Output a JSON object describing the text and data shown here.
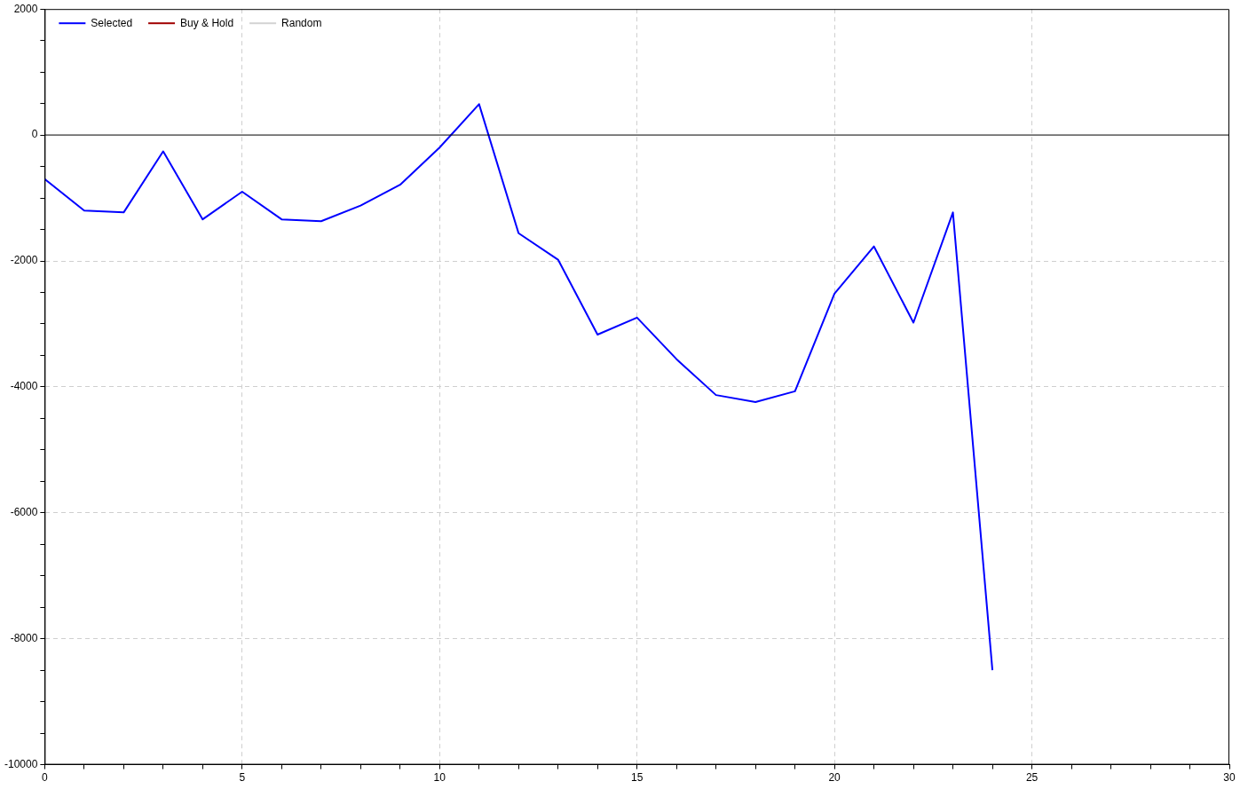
{
  "chart_data": {
    "type": "line",
    "x": [
      0,
      1,
      2,
      3,
      4,
      5,
      6,
      7,
      8,
      9,
      10,
      11,
      12,
      13,
      14,
      15,
      16,
      17,
      18,
      19,
      20,
      21,
      22,
      23,
      24
    ],
    "series": [
      {
        "name": "Selected",
        "color": "#0000ff",
        "values": [
          -700,
          -1200,
          -1230,
          -260,
          -1340,
          -900,
          -1340,
          -1370,
          -1120,
          -790,
          -200,
          490,
          -1560,
          -1980,
          -3170,
          -2900,
          -3560,
          -4130,
          -4240,
          -4070,
          -2520,
          -1770,
          -2980,
          -1230,
          -8500
        ]
      },
      {
        "name": "Buy & Hold",
        "color": "#a00000",
        "values": [
          null,
          null,
          null,
          null,
          null,
          null,
          null,
          null,
          null,
          null,
          null,
          null,
          null,
          null,
          null,
          null,
          null,
          null,
          null,
          null,
          null,
          null,
          null,
          null,
          null
        ]
      },
      {
        "name": "Random",
        "color": "#d3d3d3",
        "values": [
          null,
          null,
          null,
          null,
          null,
          null,
          null,
          null,
          null,
          null,
          null,
          null,
          null,
          null,
          null,
          null,
          null,
          null,
          null,
          null,
          null,
          null,
          null,
          null,
          null
        ]
      }
    ],
    "xlim": [
      0,
      30
    ],
    "xticks": [
      0,
      {
        "value": 1,
        "label": null
      },
      {
        "value": 2,
        "label": null
      },
      {
        "value": 3,
        "label": null
      },
      {
        "value": 4,
        "label": null
      },
      5,
      {
        "value": 6,
        "label": null
      },
      {
        "value": 7,
        "label": null
      },
      {
        "value": 8,
        "label": null
      },
      {
        "value": 9,
        "label": null
      },
      10,
      {
        "value": 11,
        "label": null
      },
      {
        "value": 12,
        "label": null
      },
      {
        "value": 13,
        "label": null
      },
      {
        "value": 14,
        "label": null
      },
      15,
      {
        "value": 16,
        "label": null
      },
      {
        "value": 17,
        "label": null
      },
      {
        "value": 18,
        "label": null
      },
      {
        "value": 19,
        "label": null
      },
      20,
      {
        "value": 21,
        "label": null
      },
      {
        "value": 22,
        "label": null
      },
      {
        "value": 23,
        "label": null
      },
      {
        "value": 24,
        "label": null
      },
      25,
      {
        "value": 26,
        "label": null
      },
      {
        "value": 27,
        "label": null
      },
      {
        "value": 28,
        "label": null
      },
      {
        "value": 29,
        "label": null
      },
      30
    ],
    "ylim": [
      -10000,
      2000
    ],
    "yticks": [
      -10000,
      {
        "value": -9500,
        "label": null
      },
      {
        "value": -9000,
        "label": null
      },
      {
        "value": -8500,
        "label": null
      },
      -8000,
      {
        "value": -7500,
        "label": null
      },
      {
        "value": -7000,
        "label": null
      },
      {
        "value": -6500,
        "label": null
      },
      -6000,
      {
        "value": -5500,
        "label": null
      },
      {
        "value": -5000,
        "label": null
      },
      {
        "value": -4500,
        "label": null
      },
      -4000,
      {
        "value": -3500,
        "label": null
      },
      {
        "value": -3000,
        "label": null
      },
      {
        "value": -2500,
        "label": null
      },
      -2000,
      {
        "value": -1500,
        "label": null
      },
      {
        "value": -1000,
        "label": null
      },
      {
        "value": -500,
        "label": null
      },
      0,
      {
        "value": 500,
        "label": null
      },
      {
        "value": 1000,
        "label": null
      },
      {
        "value": 1500,
        "label": null
      },
      2000
    ],
    "ref_lines": [
      {
        "axis": "y",
        "value": 0,
        "color": "#000000"
      }
    ],
    "grid": true,
    "legend": "top left",
    "marker": "none",
    "line_style": "solid"
  }
}
